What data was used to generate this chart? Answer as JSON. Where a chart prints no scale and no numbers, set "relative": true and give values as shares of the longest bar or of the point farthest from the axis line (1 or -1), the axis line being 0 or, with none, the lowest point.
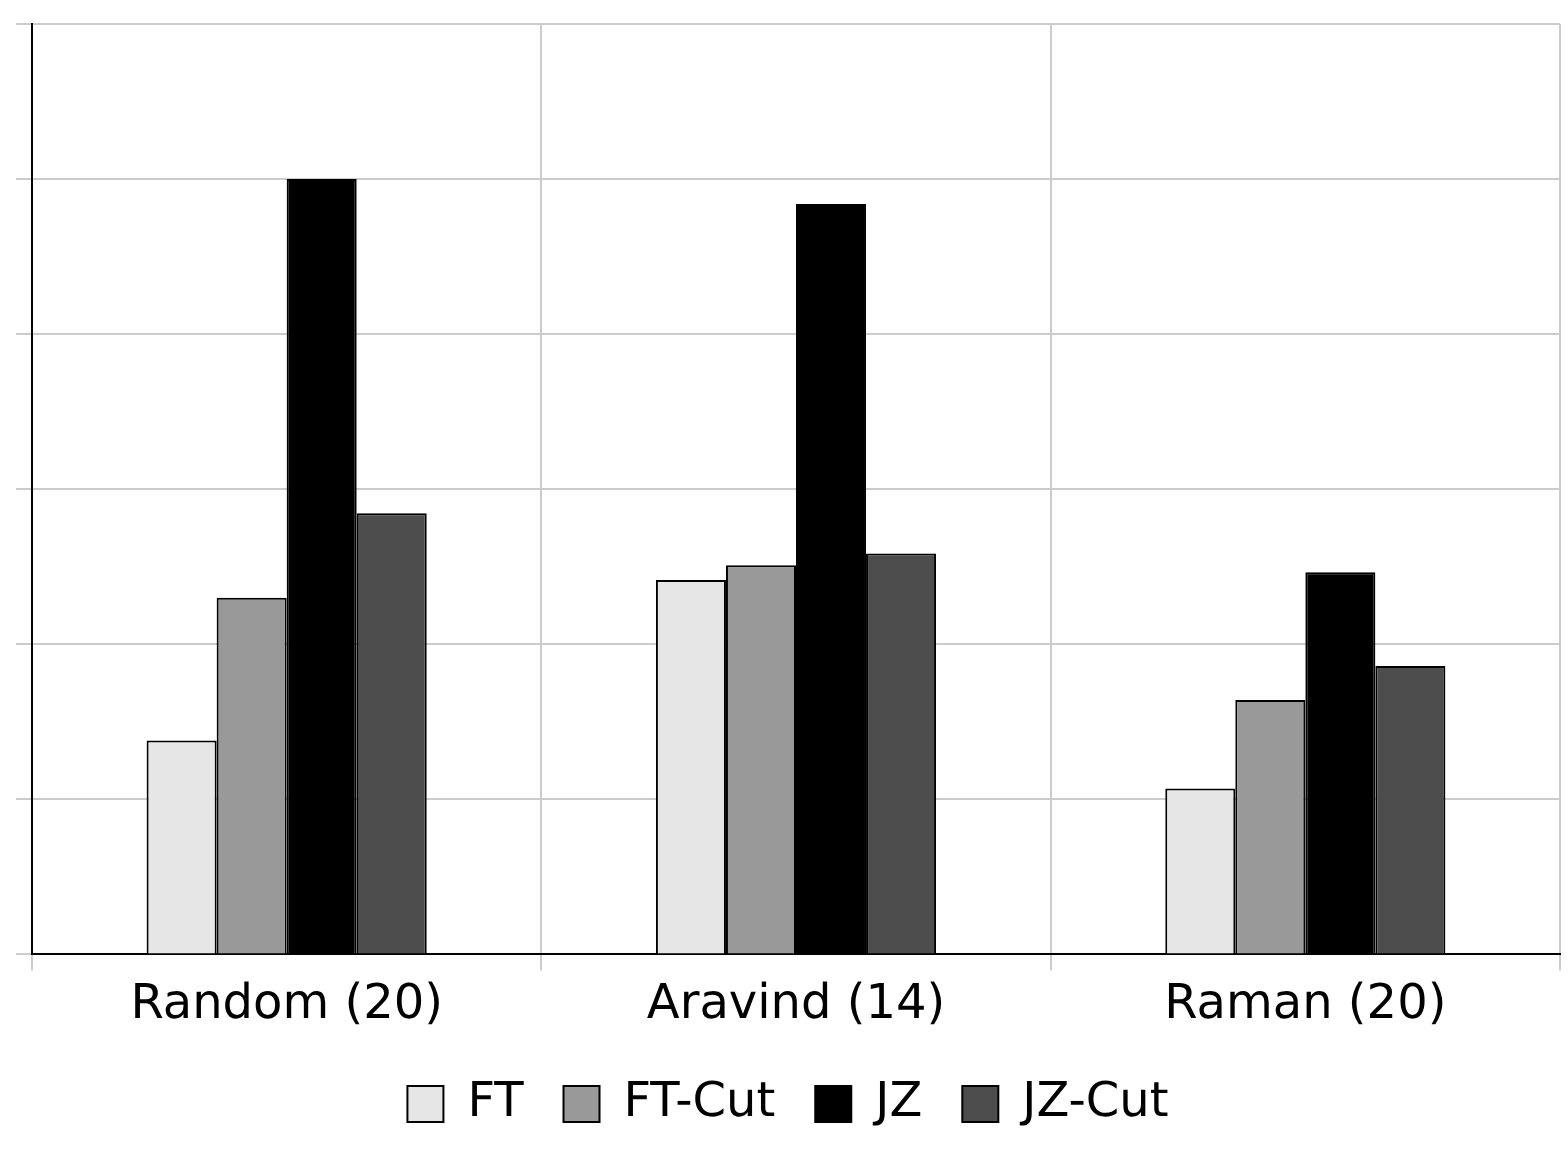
{
  "chart_data": {
    "type": "bar",
    "relative": true,
    "categories": [
      "Random (20)",
      "Aravind (14)",
      "Raman (20)"
    ],
    "series": [
      {
        "name": "FT",
        "color": "#e6e6e6",
        "values": [
          0.276,
          0.483,
          0.214
        ]
      },
      {
        "name": "FT-Cut",
        "color": "#999999",
        "values": [
          0.46,
          0.502,
          0.328
        ]
      },
      {
        "name": "JZ",
        "color": "#000000",
        "values": [
          1,
          0.968,
          0.493
        ]
      },
      {
        "name": "JZ-Cut",
        "color": "#4d4d4d",
        "values": [
          0.569,
          0.517,
          0.372
        ]
      }
    ],
    "grid": true,
    "legend": "bottom"
  }
}
